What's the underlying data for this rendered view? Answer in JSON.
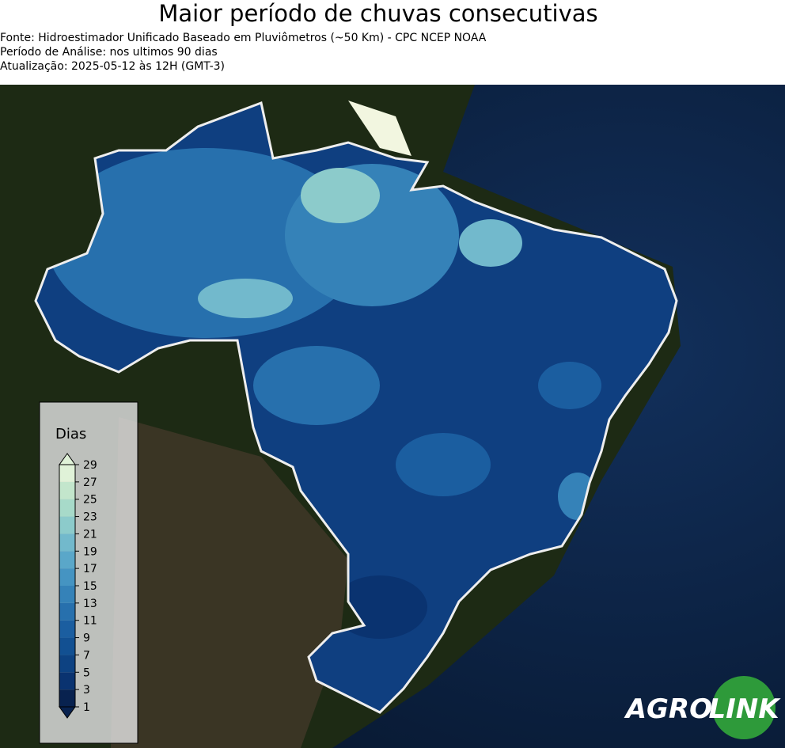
{
  "header": {
    "title": "Maior período de chuvas consecutivas",
    "lines": [
      "Fonte: Hidroestimador Unificado Baseado em Pluviômetros (~50 Km) - CPC NCEP NOAA",
      "Período de Análise: nos ultimos 90 dias",
      "Atualização: 2025-05-12 às 12H (GMT-3)"
    ]
  },
  "legend": {
    "title": "Dias",
    "ticks": [
      1,
      3,
      5,
      7,
      9,
      11,
      13,
      15,
      17,
      19,
      21,
      23,
      25,
      27,
      29
    ],
    "colors": [
      "#08224f",
      "#0a3370",
      "#0d4282",
      "#125092",
      "#1b5ea0",
      "#2770ad",
      "#3582b8",
      "#4594c2",
      "#5aa7c9",
      "#72b9cc",
      "#8ccbcb",
      "#a7dac9",
      "#c3e6cc",
      "#e0f2d8"
    ]
  },
  "logo": {
    "left": "AGRO",
    "right": "LINK"
  }
}
